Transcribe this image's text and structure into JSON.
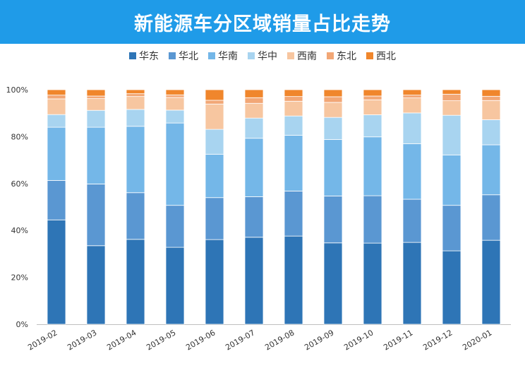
{
  "header": {
    "title": "新能源车分区域销量占比走势"
  },
  "chart_data": {
    "type": "bar",
    "stacked": true,
    "title": "新能源车分区域销量占比走势",
    "xlabel": "",
    "ylabel": "",
    "ylim": [
      0,
      100
    ],
    "y_ticks": [
      "0%",
      "20%",
      "40%",
      "60%",
      "80%",
      "100%"
    ],
    "legend_position": "top",
    "grid": false,
    "categories": [
      "2019-02",
      "2019-03",
      "2019-04",
      "2019-05",
      "2019-06",
      "2019-07",
      "2019-08",
      "2019-09",
      "2019-10",
      "2019-11",
      "2019-12",
      "2020-01"
    ],
    "series": [
      {
        "name": "华东",
        "color": "#2e75b6",
        "values": [
          44.5,
          33.5,
          36.2,
          32.8,
          36.1,
          37.1,
          37.6,
          34.7,
          34.6,
          34.9,
          31.3,
          35.8
        ]
      },
      {
        "name": "华北",
        "color": "#5a97d2",
        "values": [
          16.8,
          26.3,
          19.9,
          17.9,
          17.9,
          17.3,
          19.2,
          20.0,
          20.2,
          18.4,
          19.4,
          19.4
        ]
      },
      {
        "name": "华南",
        "color": "#74b7e8",
        "values": [
          22.7,
          24.2,
          28.3,
          35.1,
          18.5,
          24.9,
          23.8,
          24.1,
          25.1,
          23.7,
          21.5,
          21.3
        ]
      },
      {
        "name": "华中",
        "color": "#a8d4f0",
        "values": [
          5.4,
          7.2,
          7.2,
          5.5,
          10.6,
          8.6,
          8.2,
          9.4,
          9.4,
          13.1,
          16.9,
          10.7
        ]
      },
      {
        "name": "西南",
        "color": "#f7c6a0",
        "values": [
          6.7,
          5.0,
          5.5,
          5.4,
          10.8,
          6.3,
          6.3,
          6.4,
          6.4,
          6.4,
          6.2,
          8.2
        ]
      },
      {
        "name": "东北",
        "color": "#f2a776",
        "values": [
          1.6,
          1.1,
          1.2,
          1.1,
          1.6,
          2.4,
          2.0,
          2.4,
          1.6,
          1.2,
          2.8,
          1.8
        ]
      },
      {
        "name": "西北",
        "color": "#f0862c",
        "values": [
          2.3,
          2.7,
          1.7,
          2.2,
          4.5,
          3.4,
          2.9,
          3.0,
          2.7,
          2.3,
          1.9,
          2.8
        ]
      }
    ]
  }
}
